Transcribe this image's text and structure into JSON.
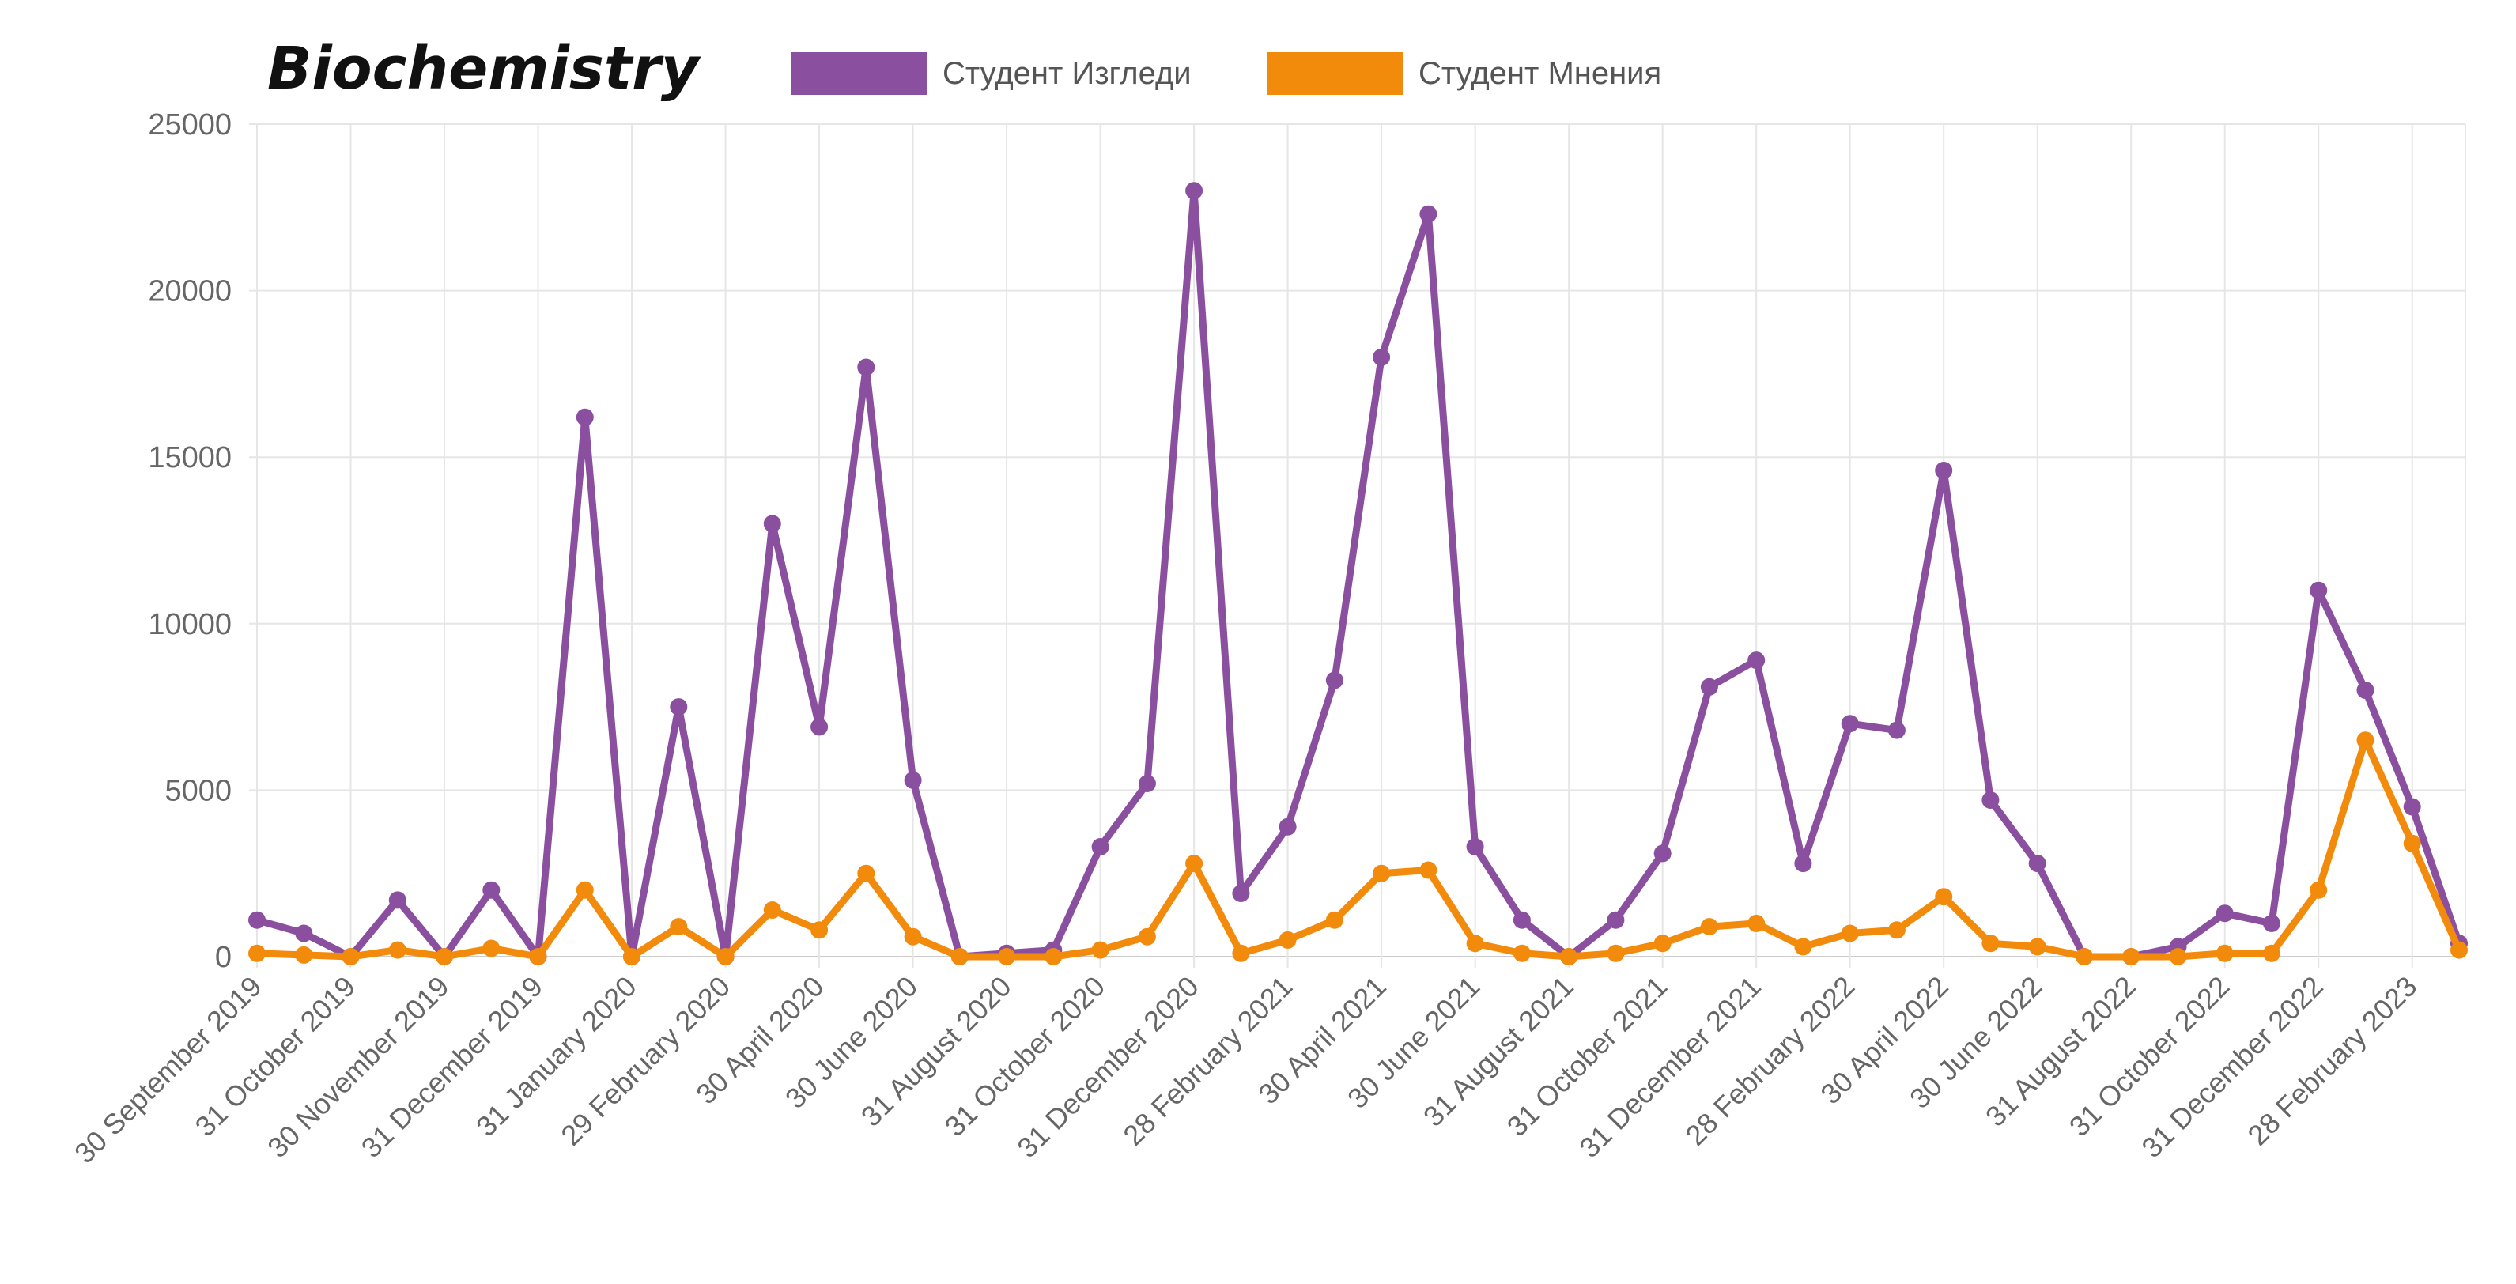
{
  "chart_data": {
    "type": "line",
    "title": "Biochemistry",
    "xlabel": "",
    "ylabel": "",
    "ylim": [
      0,
      25000
    ],
    "yticks": [
      0,
      5000,
      10000,
      15000,
      20000,
      25000
    ],
    "grid": true,
    "legend_position": "top",
    "x_tick_labels": [
      "30 September 2019",
      "31 October 2019",
      "30 November 2019",
      "31 December 2019",
      "31 January 2020",
      "29 February 2020",
      "30 April 2020",
      "30 June 2020",
      "31 August 2020",
      "31 October 2020",
      "31 December 2020",
      "28 February 2021",
      "30 April 2021",
      "30 June 2021",
      "31 August 2021",
      "31 October 2021",
      "31 December 2021",
      "28 February 2022",
      "30 April 2022",
      "30 June 2022",
      "31 August 2022",
      "31 October 2022",
      "31 December 2022",
      "28 February 2023"
    ],
    "series": [
      {
        "name": "Студент Изгледи",
        "color": "#8a4f9e",
        "values": [
          1100,
          700,
          0,
          1700,
          0,
          2000,
          0,
          16200,
          0,
          7500,
          0,
          13000,
          6900,
          17700,
          5300,
          0,
          100,
          200,
          3300,
          5200,
          23000,
          1900,
          3900,
          8300,
          18000,
          22300,
          3300,
          1100,
          0,
          1100,
          3100,
          8100,
          8900,
          2800,
          7000,
          6800,
          14600,
          4700,
          2800,
          0,
          0,
          300,
          1300,
          1000,
          11000,
          8000,
          4500,
          400
        ]
      },
      {
        "name": "Студент Мнения",
        "color": "#f28a0c",
        "values": [
          100,
          50,
          0,
          200,
          0,
          250,
          0,
          2000,
          0,
          900,
          0,
          1400,
          800,
          2500,
          600,
          0,
          0,
          0,
          200,
          600,
          2800,
          100,
          500,
          1100,
          2500,
          2600,
          400,
          100,
          0,
          100,
          400,
          900,
          1000,
          300,
          700,
          800,
          1800,
          400,
          300,
          0,
          0,
          0,
          100,
          100,
          2000,
          6500,
          3400,
          200
        ]
      }
    ]
  }
}
